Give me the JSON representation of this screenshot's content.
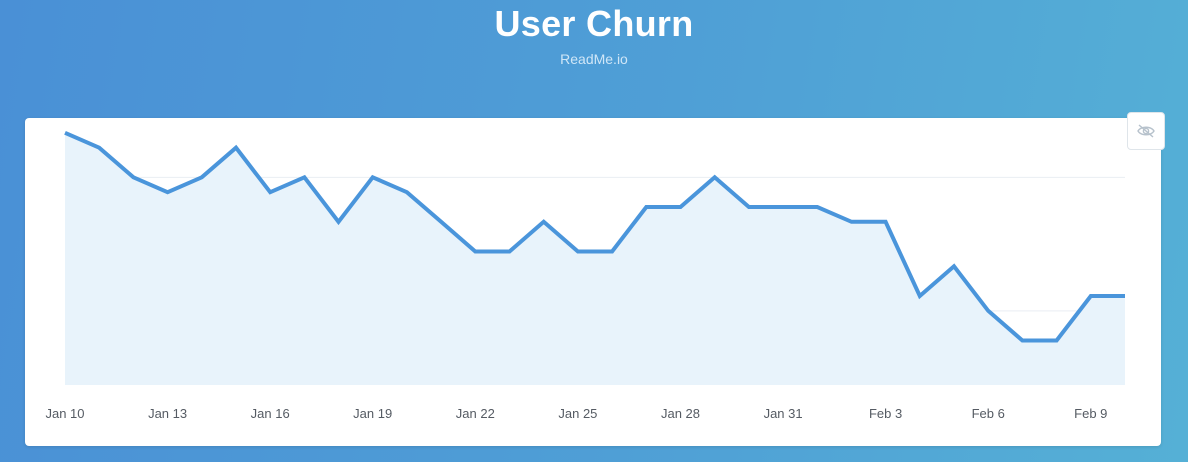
{
  "header": {
    "title": "User Churn",
    "subtitle": "ReadMe.io"
  },
  "toolbar": {
    "hide_icon": "eye-slash-icon"
  },
  "colors": {
    "line": "#4a95db",
    "area": "#e8f3fb",
    "grid": "#e9eef3",
    "tick_text": "#555b63"
  },
  "chart_data": {
    "type": "area",
    "title": "",
    "xlabel": "",
    "ylabel": "",
    "grid": true,
    "legend": "none",
    "x_ticks": [
      "Jan 10",
      "Jan 13",
      "Jan 16",
      "Jan 19",
      "Jan 22",
      "Jan 25",
      "Jan 28",
      "Jan 31",
      "Feb 3",
      "Feb 6",
      "Feb 9"
    ],
    "x": [
      "Jan 10",
      "Jan 11",
      "Jan 12",
      "Jan 13",
      "Jan 14",
      "Jan 15",
      "Jan 16",
      "Jan 17",
      "Jan 18",
      "Jan 19",
      "Jan 20",
      "Jan 21",
      "Jan 22",
      "Jan 23",
      "Jan 24",
      "Jan 25",
      "Jan 26",
      "Jan 27",
      "Jan 28",
      "Jan 29",
      "Jan 30",
      "Jan 31",
      "Feb 1",
      "Feb 2",
      "Feb 3",
      "Feb 4",
      "Feb 5",
      "Feb 6",
      "Feb 7",
      "Feb 8",
      "Feb 9",
      "Feb 10"
    ],
    "series": [
      {
        "values": [
          17,
          16,
          14,
          13,
          14,
          16,
          13,
          14,
          11,
          14,
          13,
          11,
          9,
          9,
          11,
          9,
          9,
          12,
          12,
          14,
          12,
          12,
          12,
          11,
          11,
          6,
          8,
          5,
          3,
          3,
          6,
          6
        ]
      }
    ],
    "ylim": [
      0,
      18
    ]
  }
}
